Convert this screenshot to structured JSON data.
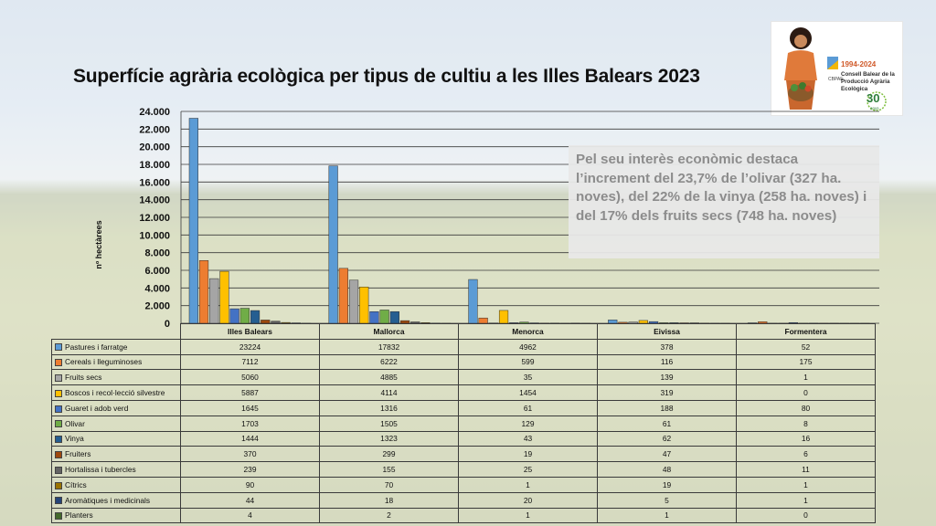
{
  "slide": {
    "title": "Superfície agrària ecològica per tipus de cultiu a les Illes Balears 2023",
    "callout": "Pel seu interès econòmic destaca l’increment del 23,7% de l’olivar (327 ha. noves), del 22% de la vinya (258 ha. noves) i del 17% dels fruits secs (748 ha. noves)",
    "logo": {
      "years": "1994-2024",
      "line1": "Consell Balear de la",
      "line2": "Producció Agrària",
      "line3": "Ecològica",
      "acronym": "CBPAE",
      "anniversary": "30",
      "anys": "anys"
    }
  },
  "chart_data": {
    "type": "bar",
    "ylabel": "nº hectàrees",
    "ylim": [
      0,
      24000
    ],
    "yticks": [
      "0",
      "2.000",
      "4.000",
      "6.000",
      "8.000",
      "10.000",
      "12.000",
      "14.000",
      "16.000",
      "18.000",
      "20.000",
      "22.000",
      "24.000"
    ],
    "ytick_values": [
      0,
      2000,
      4000,
      6000,
      8000,
      10000,
      12000,
      14000,
      16000,
      18000,
      20000,
      22000,
      24000
    ],
    "grid": true,
    "legend": "data-table",
    "categories": [
      "Illes Balears",
      "Mallorca",
      "Menorca",
      "Eivissa",
      "Formentera"
    ],
    "series": [
      {
        "name": "Pastures i farratge",
        "color": "#5b9bd5",
        "values": [
          23224,
          17832,
          4962,
          378,
          52
        ]
      },
      {
        "name": "Cereals i lleguminoses",
        "color": "#ed7d31",
        "values": [
          7112,
          6222,
          599,
          116,
          175
        ]
      },
      {
        "name": "Fruits secs",
        "color": "#a5a5a5",
        "values": [
          5060,
          4885,
          35,
          139,
          1
        ]
      },
      {
        "name": "Boscos i recol·lecció silvestre",
        "color": "#ffc000",
        "values": [
          5887,
          4114,
          1454,
          319,
          0
        ]
      },
      {
        "name": "Guaret i adob verd",
        "color": "#4472c4",
        "values": [
          1645,
          1316,
          61,
          188,
          80
        ]
      },
      {
        "name": "Olivar",
        "color": "#70ad47",
        "values": [
          1703,
          1505,
          129,
          61,
          8
        ]
      },
      {
        "name": "Vinya",
        "color": "#255e91",
        "values": [
          1444,
          1323,
          43,
          62,
          16
        ]
      },
      {
        "name": "Fruiters",
        "color": "#9e480e",
        "values": [
          370,
          299,
          19,
          47,
          6
        ]
      },
      {
        "name": "Hortalissa i tubercles",
        "color": "#636363",
        "values": [
          239,
          155,
          25,
          48,
          11
        ]
      },
      {
        "name": "Cítrics",
        "color": "#997300",
        "values": [
          90,
          70,
          1,
          19,
          1
        ]
      },
      {
        "name": "Aromàtiques i medicinals",
        "color": "#264478",
        "values": [
          44,
          18,
          20,
          5,
          1
        ]
      },
      {
        "name": "Planters",
        "color": "#43682b",
        "values": [
          4,
          2,
          1,
          1,
          0
        ]
      }
    ]
  }
}
